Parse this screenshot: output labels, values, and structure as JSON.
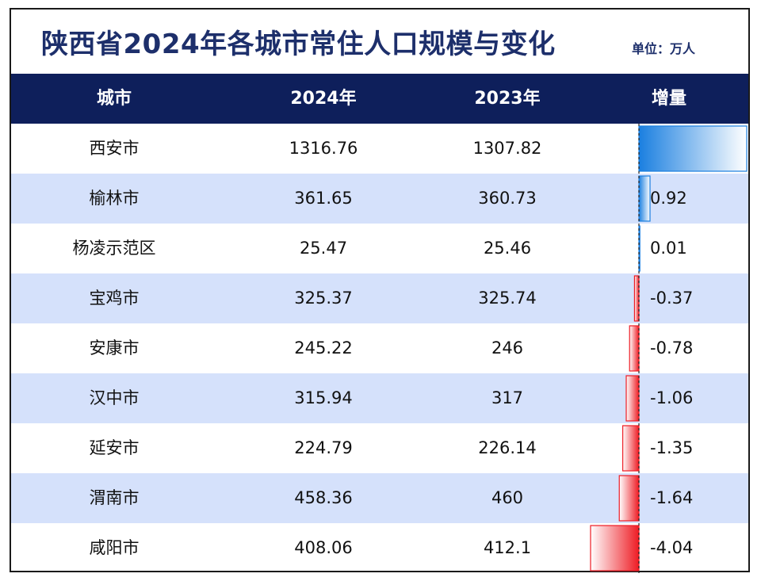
{
  "title": "陕西省2024年各城市常住人口规模与变化",
  "unit_label": "单位：万人",
  "columns": [
    "城市",
    "2024年",
    "2023年",
    "增量"
  ],
  "rows": [
    {
      "city": "西安市",
      "y2024": "1316.76",
      "y2023": "1307.82",
      "change": "8.94"
    },
    {
      "city": "榆林市",
      "y2024": "361.65",
      "y2023": "360.73",
      "change": "0.92"
    },
    {
      "city": "杨凌示范区",
      "y2024": "25.47",
      "y2023": "25.46",
      "change": "0.01"
    },
    {
      "city": "宝鸡市",
      "y2024": "325.37",
      "y2023": "325.74",
      "change": "-0.37"
    },
    {
      "city": "安康市",
      "y2024": "245.22",
      "y2023": "246",
      "change": "-0.78"
    },
    {
      "city": "汉中市",
      "y2024": "315.94",
      "y2023": "317",
      "change": "-1.06"
    },
    {
      "city": "延安市",
      "y2024": "224.79",
      "y2023": "226.14",
      "change": "-1.35"
    },
    {
      "city": "渭南市",
      "y2024": "458.36",
      "y2023": "460",
      "change": "-1.64"
    },
    {
      "city": "咸阳市",
      "y2024": "408.06",
      "y2023": "412.1",
      "change": "-4.04"
    }
  ],
  "chart_data": {
    "type": "table",
    "title": "陕西省2024年各城市常住人口规模与变化",
    "categories": [
      "西安市",
      "榆林市",
      "杨凌示范区",
      "宝鸡市",
      "安康市",
      "汉中市",
      "延安市",
      "渭南市",
      "咸阳市"
    ],
    "series": [
      {
        "name": "2024年",
        "values": [
          1316.76,
          361.65,
          25.47,
          325.37,
          245.22,
          315.94,
          224.79,
          458.36,
          408.06
        ]
      },
      {
        "name": "2023年",
        "values": [
          1307.82,
          360.73,
          25.46,
          325.74,
          246,
          317,
          226.14,
          460,
          412.1
        ]
      },
      {
        "name": "增量",
        "values": [
          8.94,
          0.92,
          0.01,
          -0.37,
          -0.78,
          -1.06,
          -1.35,
          -1.64,
          -4.04
        ]
      }
    ],
    "data_bar_range": [
      -4.04,
      8.94
    ]
  },
  "colors": {
    "header_bg": "#0e1f5b",
    "title_text": "#1d2f6b",
    "row_alt_bg": "#d5e1fb",
    "positive_bar": "#1a7fe0",
    "negative_bar": "#ee1c24"
  }
}
